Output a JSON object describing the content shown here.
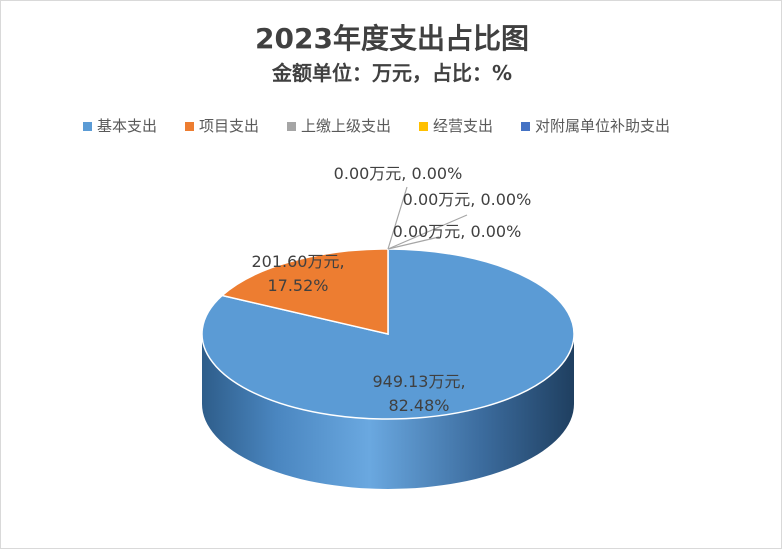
{
  "chart_data": {
    "type": "pie",
    "title": "2023年度支出占比图",
    "subtitle": "金额单位：万元，占比：%",
    "legend_position": "top",
    "categories": [
      "基本支出",
      "项目支出",
      "上缴上级支出",
      "经营支出",
      "对附属单位补助支出"
    ],
    "values": [
      949.13,
      201.6,
      0.0,
      0.0,
      0.0
    ],
    "percents": [
      82.48,
      17.52,
      0.0,
      0.0,
      0.0
    ],
    "colors": [
      "#5b9bd5",
      "#ed7d31",
      "#a5a5a5",
      "#ffc000",
      "#4472c4"
    ],
    "data_labels": [
      [
        "949.13万元,",
        "82.48%"
      ],
      [
        "201.60万元,",
        "17.52%"
      ],
      [
        "0.00万元, 0.00%"
      ],
      [
        "0.00万元, 0.00%"
      ],
      [
        "0.00万元, 0.00%"
      ]
    ]
  }
}
